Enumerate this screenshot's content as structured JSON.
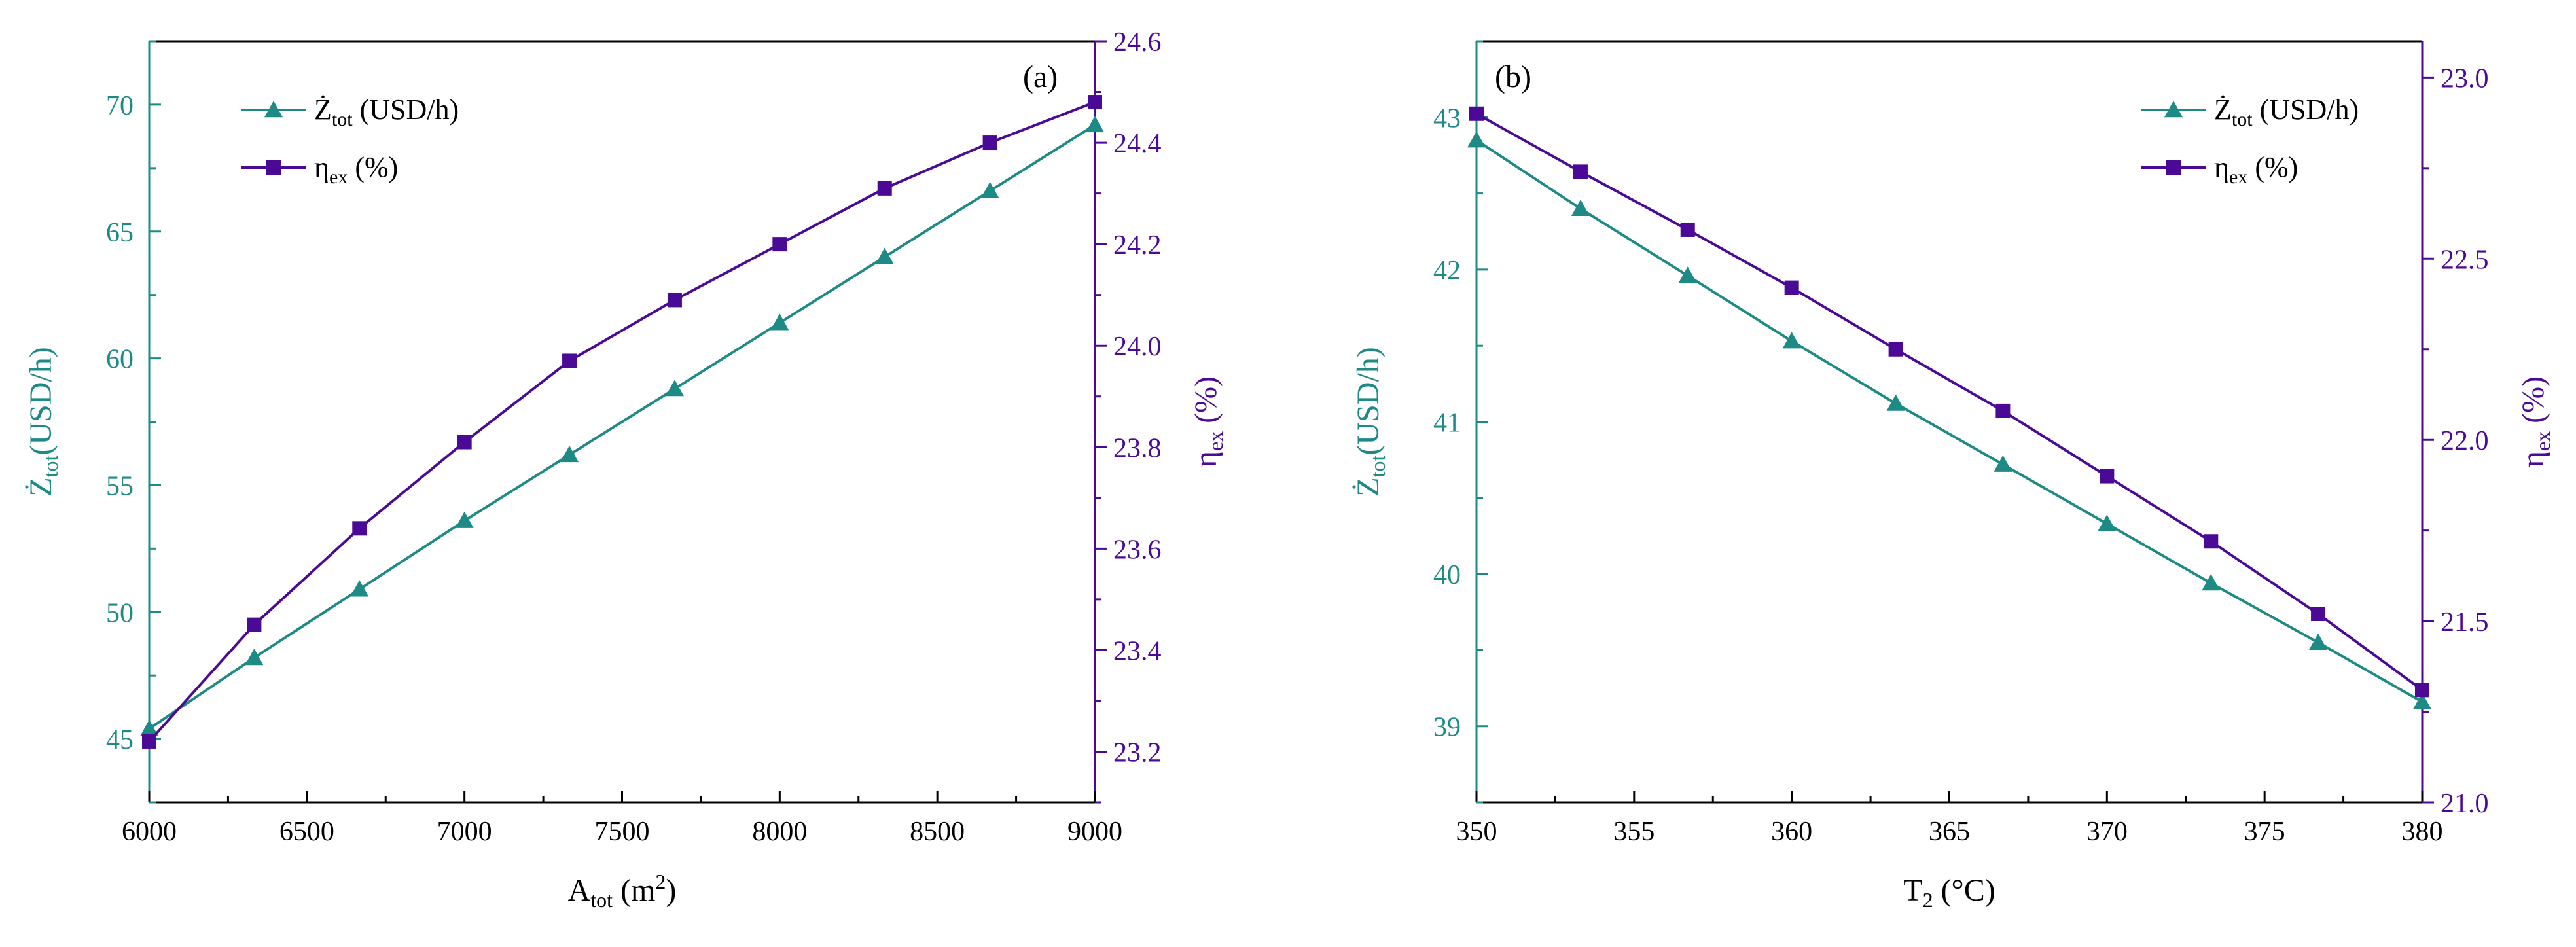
{
  "colors": {
    "teal": "#1e8a86",
    "purple": "#4b0a96",
    "axis": "#000000"
  },
  "chart_data": [
    {
      "type": "line",
      "panel_label": "(a)",
      "x": [
        6000,
        6333,
        6667,
        7000,
        7333,
        7667,
        8000,
        8333,
        8667,
        9000
      ],
      "xlim": [
        6000,
        9000
      ],
      "xticks": [
        6000,
        6500,
        7000,
        7500,
        8000,
        8500,
        9000
      ],
      "xtick_labels": [
        "6000",
        "6500",
        "7000",
        "7500",
        "8000",
        "8500",
        "9000"
      ],
      "xlabel": {
        "base": "A",
        "sub": "tot",
        "rest": " (m",
        "sup": "2",
        "tail": ")"
      },
      "left_axis": {
        "ylim": [
          42.5,
          72.5
        ],
        "ticks": [
          45,
          50,
          55,
          60,
          65,
          70
        ],
        "tick_labels": [
          "45",
          "50",
          "55",
          "60",
          "65",
          "70"
        ],
        "title": {
          "base": "Ż",
          "sub": "tot",
          "tail": "(USD/h)"
        }
      },
      "right_axis": {
        "ylim": [
          23.1,
          24.6
        ],
        "ticks": [
          23.2,
          23.4,
          23.6,
          23.8,
          24.0,
          24.2,
          24.4,
          24.6
        ],
        "tick_labels": [
          "23.2",
          "23.4",
          "23.6",
          "23.8",
          "24.0",
          "24.2",
          "24.4",
          "24.6"
        ],
        "title": {
          "base": "η",
          "sub": "ex",
          "tail": " (%)"
        }
      },
      "series": [
        {
          "name": "Ż_tot (USD/h)",
          "axis": "left",
          "marker": "triangle",
          "color": "#1e8a86",
          "values": [
            45.4,
            48.2,
            50.9,
            53.6,
            56.2,
            58.8,
            61.4,
            64.0,
            66.6,
            69.2
          ]
        },
        {
          "name": "η_ex (%)",
          "axis": "right",
          "marker": "square",
          "color": "#4b0a96",
          "values": [
            23.22,
            23.45,
            23.64,
            23.81,
            23.97,
            24.09,
            24.2,
            24.31,
            24.4,
            24.48
          ]
        }
      ],
      "legend": [
        {
          "base": "Ż",
          "sub": "tot",
          "tail": " (USD/h)"
        },
        {
          "base": "η",
          "sub": "ex",
          "tail": " (%)"
        }
      ],
      "legend_position": "top-left"
    },
    {
      "type": "line",
      "panel_label": "(b)",
      "x": [
        350,
        353.3,
        356.7,
        360,
        363.3,
        366.7,
        370,
        373.3,
        376.7,
        380
      ],
      "xlim": [
        350,
        380
      ],
      "xticks": [
        350,
        355,
        360,
        365,
        370,
        375,
        380
      ],
      "xtick_labels": [
        "350",
        "355",
        "360",
        "365",
        "370",
        "375",
        "380"
      ],
      "xlabel": {
        "base": "T",
        "sub": "2",
        "rest": " (°C)",
        "sup": "",
        "tail": ""
      },
      "left_axis": {
        "ylim": [
          38.5,
          43.5
        ],
        "ticks": [
          39,
          40,
          41,
          42,
          43
        ],
        "tick_labels": [
          "39",
          "40",
          "41",
          "42",
          "43"
        ],
        "title": {
          "base": "Ż",
          "sub": "tot",
          "tail": "(USD/h)"
        }
      },
      "right_axis": {
        "ylim": [
          21.0,
          23.1
        ],
        "ticks": [
          21.0,
          21.5,
          22.0,
          22.5,
          23.0
        ],
        "tick_labels": [
          "21.0",
          "21.5",
          "22.0",
          "22.5",
          "23.0"
        ],
        "title": {
          "base": "η",
          "sub": "ex",
          "tail": " (%)"
        }
      },
      "series": [
        {
          "name": "Ż_tot (USD/h)",
          "axis": "left",
          "marker": "triangle",
          "color": "#1e8a86",
          "values": [
            42.85,
            42.4,
            41.96,
            41.53,
            41.12,
            40.72,
            40.33,
            39.94,
            39.55,
            39.16
          ]
        },
        {
          "name": "η_ex (%)",
          "axis": "right",
          "marker": "square",
          "color": "#4b0a96",
          "values": [
            22.9,
            22.74,
            22.58,
            22.42,
            22.25,
            22.08,
            21.9,
            21.72,
            21.52,
            21.31
          ]
        }
      ],
      "legend": [
        {
          "base": "Ż",
          "sub": "tot",
          "tail": " (USD/h)"
        },
        {
          "base": "η",
          "sub": "ex",
          "tail": " (%)"
        }
      ],
      "legend_position": "top-right"
    }
  ]
}
